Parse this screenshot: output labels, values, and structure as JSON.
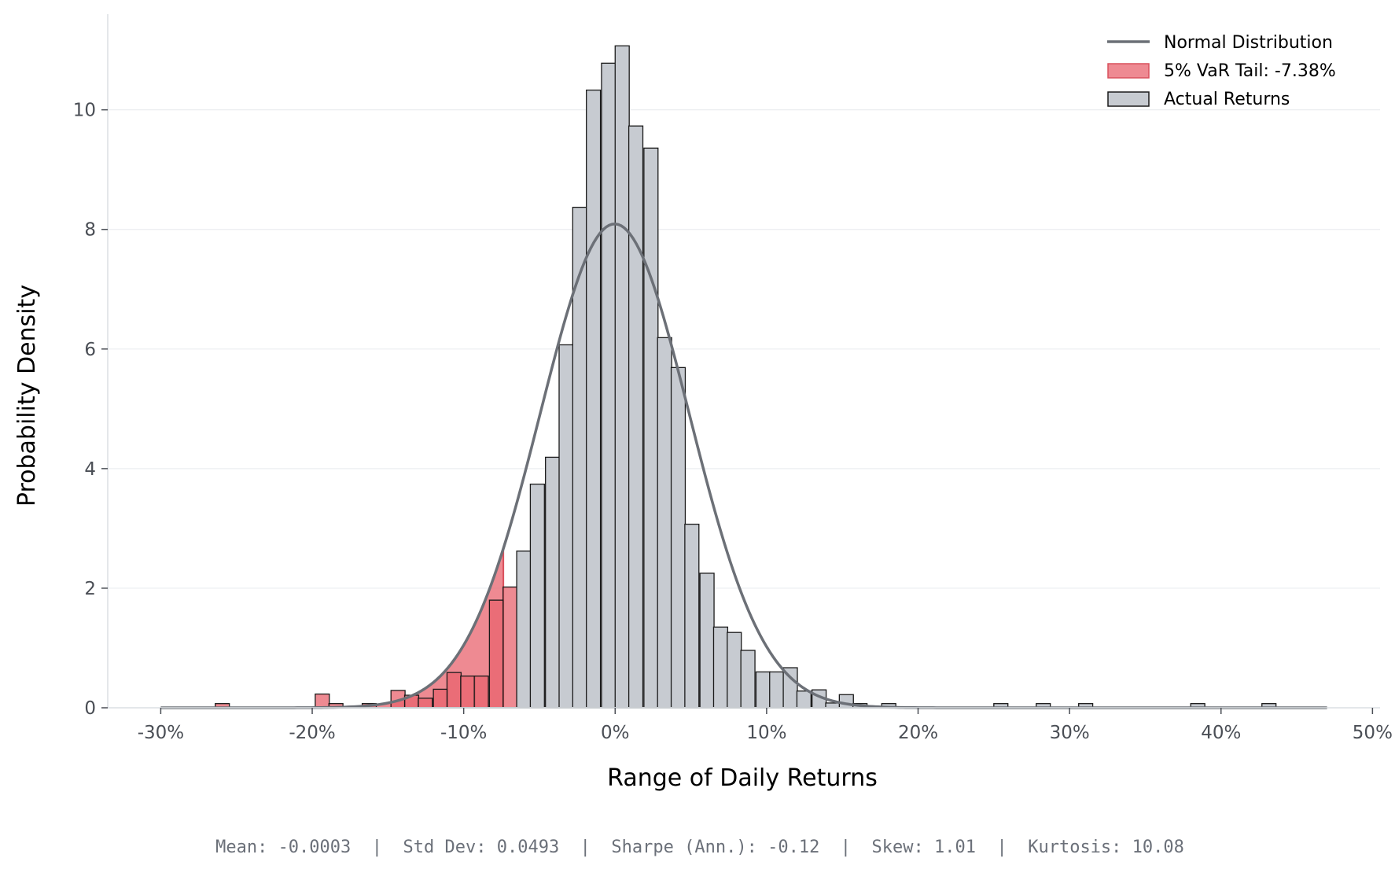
{
  "chart_data": {
    "type": "bar",
    "xlabel": "Range of Daily Returns",
    "ylabel": "Probability Density",
    "xlim": [
      -0.335,
      0.505
    ],
    "ylim": [
      0,
      11.6
    ],
    "x_ticks": [
      {
        "value": -0.3,
        "label": "-30%"
      },
      {
        "value": -0.2,
        "label": "-20%"
      },
      {
        "value": -0.1,
        "label": "-10%"
      },
      {
        "value": 0.0,
        "label": "0%"
      },
      {
        "value": 0.1,
        "label": "10%"
      },
      {
        "value": 0.2,
        "label": "20%"
      },
      {
        "value": 0.3,
        "label": "30%"
      },
      {
        "value": 0.4,
        "label": "40%"
      },
      {
        "value": 0.5,
        "label": "50%"
      }
    ],
    "y_ticks": [
      {
        "value": 0,
        "label": "0"
      },
      {
        "value": 2,
        "label": "2"
      },
      {
        "value": 4,
        "label": "4"
      },
      {
        "value": 6,
        "label": "6"
      },
      {
        "value": 8,
        "label": "8"
      },
      {
        "value": 10,
        "label": "10"
      }
    ],
    "grid": "horizontal",
    "legend_position": "top-right",
    "legend": [
      {
        "label": "Normal Distribution",
        "kind": "line",
        "color": "#6c7077"
      },
      {
        "label": "5% VaR Tail: -7.38%",
        "kind": "patch",
        "color": "#e8636e"
      },
      {
        "label": "Actual Returns",
        "kind": "patch",
        "color": "#c7cbd1"
      }
    ],
    "histogram": {
      "name": "Actual Returns",
      "bin_width": 0.0093,
      "fill": "#c7cbd1",
      "edge": "#1a1a1a",
      "bins": [
        [
          -0.264,
          0.07
        ],
        [
          -0.198,
          0.23
        ],
        [
          -0.189,
          0.07
        ],
        [
          -0.167,
          0.07
        ],
        [
          -0.148,
          0.29
        ],
        [
          -0.139,
          0.21
        ],
        [
          -0.13,
          0.16
        ],
        [
          -0.12,
          0.31
        ],
        [
          -0.111,
          0.59
        ],
        [
          -0.102,
          0.53
        ],
        [
          -0.093,
          0.53
        ],
        [
          -0.083,
          1.8
        ],
        [
          -0.074,
          2.02
        ],
        [
          -0.065,
          2.62
        ],
        [
          -0.056,
          3.74
        ],
        [
          -0.046,
          4.19
        ],
        [
          -0.037,
          6.07
        ],
        [
          -0.028,
          8.37
        ],
        [
          -0.019,
          10.33
        ],
        [
          -0.009,
          10.78
        ],
        [
          0.0,
          11.07
        ],
        [
          0.009,
          9.73
        ],
        [
          0.019,
          9.36
        ],
        [
          0.028,
          6.19
        ],
        [
          0.037,
          5.69
        ],
        [
          0.046,
          3.07
        ],
        [
          0.056,
          2.25
        ],
        [
          0.065,
          1.35
        ],
        [
          0.074,
          1.26
        ],
        [
          0.083,
          0.96
        ],
        [
          0.093,
          0.6
        ],
        [
          0.102,
          0.6
        ],
        [
          0.111,
          0.67
        ],
        [
          0.12,
          0.28
        ],
        [
          0.13,
          0.3
        ],
        [
          0.139,
          0.08
        ],
        [
          0.148,
          0.22
        ],
        [
          0.157,
          0.07
        ],
        [
          0.176,
          0.07
        ],
        [
          0.25,
          0.07
        ],
        [
          0.278,
          0.07
        ],
        [
          0.306,
          0.07
        ],
        [
          0.38,
          0.07
        ],
        [
          0.427,
          0.07
        ]
      ]
    },
    "normal_fit": {
      "name": "Normal Distribution",
      "mean": -0.0003,
      "std": 0.0493,
      "x_range": [
        -0.3,
        0.47
      ],
      "color": "#6c7077"
    },
    "var_tail": {
      "label": "5% VaR Tail: -7.38%",
      "threshold": -0.0738,
      "color": "#e8636e",
      "opacity": 0.75
    }
  },
  "stats_footer": "Mean: -0.0003  |  Std Dev: 0.0493  |  Sharpe (Ann.): -0.12  |  Skew: 1.01  |  Kurtosis: 10.08"
}
